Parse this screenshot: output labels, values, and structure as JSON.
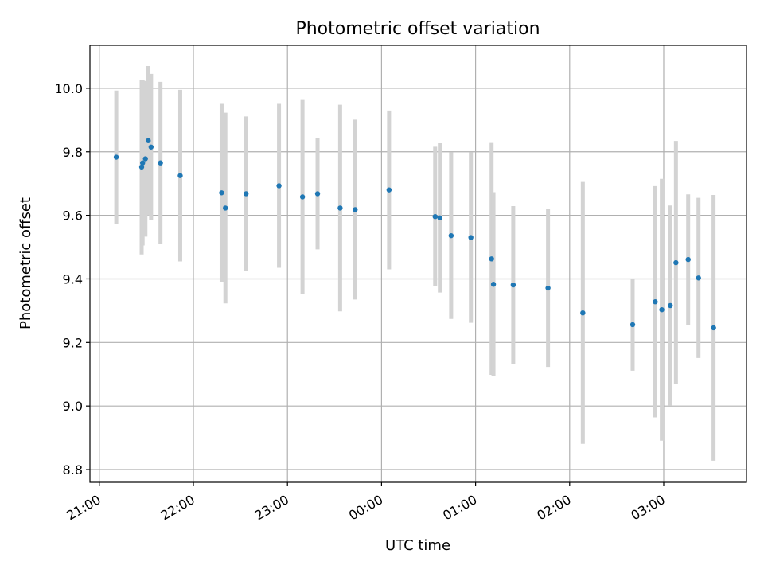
{
  "chart_data": {
    "type": "scatter",
    "title": "Photometric offset variation",
    "xlabel": "UTC time",
    "ylabel": "Photometric offset",
    "x_unit": "hours after 21:00 UTC",
    "xlim": [
      -0.1,
      6.88
    ],
    "ylim": [
      8.76,
      10.135
    ],
    "grid": true,
    "x_ticks": [
      {
        "value": 0,
        "label": "21:00"
      },
      {
        "value": 1,
        "label": "22:00"
      },
      {
        "value": 2,
        "label": "23:00"
      },
      {
        "value": 3,
        "label": "00:00"
      },
      {
        "value": 4,
        "label": "01:00"
      },
      {
        "value": 5,
        "label": "02:00"
      },
      {
        "value": 6,
        "label": "03:00"
      }
    ],
    "y_ticks": [
      {
        "value": 8.8,
        "label": "8.8"
      },
      {
        "value": 9.0,
        "label": "9.0"
      },
      {
        "value": 9.2,
        "label": "9.2"
      },
      {
        "value": 9.4,
        "label": "9.4"
      },
      {
        "value": 9.6,
        "label": "9.6"
      },
      {
        "value": 9.8,
        "label": "9.8"
      },
      {
        "value": 10.0,
        "label": "10.0"
      }
    ],
    "marker_color": "#1f77b4",
    "errorbar_color": "#d3d3d3",
    "series": [
      {
        "points": [
          {
            "x": 0.18,
            "y": 9.783,
            "yerr": 0.21
          },
          {
            "x": 0.45,
            "y": 9.752,
            "yerr": 0.275
          },
          {
            "x": 0.46,
            "y": 9.765,
            "yerr": 0.26
          },
          {
            "x": 0.49,
            "y": 9.778,
            "yerr": 0.245
          },
          {
            "x": 0.52,
            "y": 9.835,
            "yerr": 0.235
          },
          {
            "x": 0.55,
            "y": 9.815,
            "yerr": 0.23
          },
          {
            "x": 0.65,
            "y": 9.765,
            "yerr": 0.255
          },
          {
            "x": 0.86,
            "y": 9.725,
            "yerr": 0.27
          },
          {
            "x": 1.3,
            "y": 9.671,
            "yerr": 0.28
          },
          {
            "x": 1.34,
            "y": 9.623,
            "yerr": 0.3
          },
          {
            "x": 1.56,
            "y": 9.668,
            "yerr": 0.243
          },
          {
            "x": 1.91,
            "y": 9.693,
            "yerr": 0.258
          },
          {
            "x": 2.16,
            "y": 9.658,
            "yerr": 0.305
          },
          {
            "x": 2.32,
            "y": 9.668,
            "yerr": 0.175
          },
          {
            "x": 2.56,
            "y": 9.623,
            "yerr": 0.325
          },
          {
            "x": 2.72,
            "y": 9.618,
            "yerr": 0.283
          },
          {
            "x": 3.08,
            "y": 9.68,
            "yerr": 0.25
          },
          {
            "x": 3.57,
            "y": 9.596,
            "yerr": 0.22
          },
          {
            "x": 3.62,
            "y": 9.592,
            "yerr": 0.235
          },
          {
            "x": 3.74,
            "y": 9.536,
            "yerr": 0.262
          },
          {
            "x": 3.95,
            "y": 9.53,
            "yerr": 0.268
          },
          {
            "x": 4.17,
            "y": 9.463,
            "yerr": 0.365
          },
          {
            "x": 4.19,
            "y": 9.383,
            "yerr": 0.29
          },
          {
            "x": 4.4,
            "y": 9.381,
            "yerr": 0.248
          },
          {
            "x": 4.77,
            "y": 9.371,
            "yerr": 0.248
          },
          {
            "x": 5.14,
            "y": 9.293,
            "yerr": 0.412
          },
          {
            "x": 5.67,
            "y": 9.256,
            "yerr": 0.145
          },
          {
            "x": 5.91,
            "y": 9.328,
            "yerr": 0.364
          },
          {
            "x": 5.98,
            "y": 9.303,
            "yerr": 0.412
          },
          {
            "x": 6.07,
            "y": 9.316,
            "yerr": 0.315
          },
          {
            "x": 6.13,
            "y": 9.451,
            "yerr": 0.383
          },
          {
            "x": 6.26,
            "y": 9.461,
            "yerr": 0.205
          },
          {
            "x": 6.37,
            "y": 9.403,
            "yerr": 0.252
          },
          {
            "x": 6.53,
            "y": 9.246,
            "yerr": 0.418
          }
        ]
      }
    ]
  }
}
